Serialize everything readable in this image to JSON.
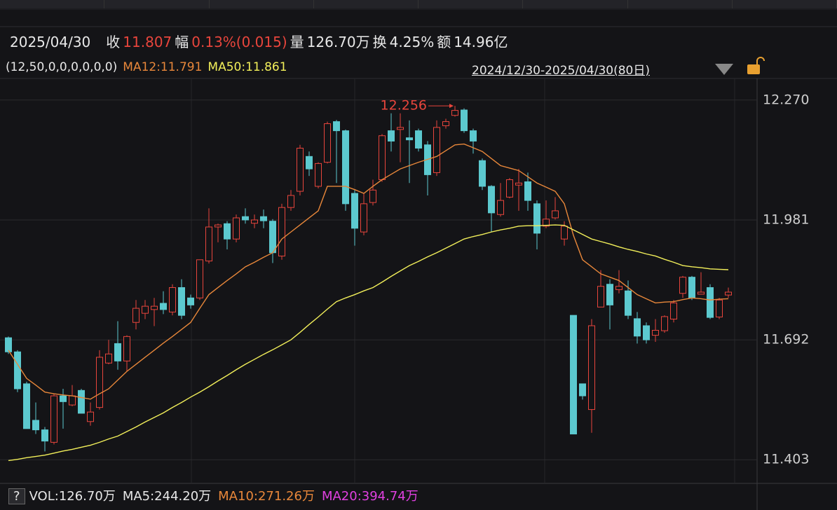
{
  "header": {
    "date": "2025/04/30",
    "stats": [
      {
        "label": "收",
        "value": "11.807",
        "color": "#e8453c"
      },
      {
        "label": "幅",
        "value": "0.13%(0.015)",
        "color": "#e8453c"
      },
      {
        "label": "量",
        "value": "126.70万",
        "color": "#e8e8e8"
      },
      {
        "label": "换",
        "value": "4.25%",
        "color": "#e8e8e8"
      },
      {
        "label": "额",
        "value": "14.96亿",
        "color": "#e8e8e8"
      }
    ]
  },
  "chart_data": {
    "type": "candlestick",
    "legend": [
      {
        "text": "(12,50,0,0,0,0,0,0)",
        "color": "#e8e8e8"
      },
      {
        "text": "MA12:11.791",
        "color": "#e8873a"
      },
      {
        "text": "MA50:11.861",
        "color": "#f2ef5a"
      }
    ],
    "range_label": "2024/12/30-2025/04/30(80日)",
    "up_color": "#e8453c",
    "down_color": "#5cc9cf",
    "ohlc": {
      "open": [
        11.697,
        11.663,
        11.586,
        11.498,
        11.475,
        11.445,
        11.557,
        11.535,
        11.57,
        11.495,
        11.529,
        11.636,
        11.683,
        11.641,
        11.734,
        11.756,
        11.765,
        11.78,
        11.759,
        11.818,
        11.793,
        11.793,
        11.882,
        11.964,
        11.972,
        11.935,
        11.989,
        11.973,
        11.989,
        11.978,
        11.894,
        12.011,
        12.05,
        12.134,
        12.062,
        12.12,
        12.218,
        12.196,
        12.045,
        11.952,
        12.023,
        12.078,
        12.196,
        12.199,
        12.179,
        12.196,
        12.162,
        12.095,
        12.208,
        12.233,
        12.246,
        12.196,
        12.124,
        12.062,
        11.994,
        12.036,
        12.065,
        12.073,
        12.02,
        11.966,
        11.986,
        11.935,
        11.751,
        11.586,
        11.524,
        11.771,
        11.826,
        11.813,
        11.81,
        11.743,
        11.726,
        11.703,
        11.714,
        11.742,
        11.804,
        11.843,
        11.802,
        11.818,
        11.747,
        11.8
      ],
      "high": [
        11.7,
        11.667,
        11.591,
        11.541,
        11.482,
        11.562,
        11.574,
        11.583,
        11.574,
        11.541,
        11.667,
        11.692,
        11.737,
        11.703,
        11.788,
        11.788,
        11.793,
        11.809,
        11.826,
        11.838,
        11.801,
        11.885,
        12.009,
        11.972,
        11.978,
        11.994,
        12.009,
        11.994,
        12.006,
        11.983,
        12.02,
        12.053,
        12.162,
        12.146,
        12.12,
        12.218,
        12.222,
        12.199,
        12.053,
        12.045,
        12.078,
        12.188,
        12.238,
        12.238,
        12.221,
        12.201,
        12.171,
        12.221,
        12.225,
        12.256,
        12.25,
        12.201,
        12.129,
        12.065,
        12.07,
        12.082,
        12.104,
        12.095,
        12.028,
        12.028,
        12.036,
        11.978,
        11.751,
        11.586,
        11.742,
        11.86,
        11.838,
        11.86,
        11.835,
        11.759,
        11.734,
        11.742,
        11.751,
        11.788,
        11.846,
        11.846,
        11.855,
        11.826,
        11.793,
        11.818
      ],
      "low": [
        11.658,
        11.566,
        11.478,
        11.465,
        11.423,
        11.44,
        11.478,
        11.532,
        11.515,
        11.485,
        11.524,
        11.633,
        11.62,
        11.616,
        11.717,
        11.742,
        11.725,
        11.754,
        11.751,
        11.742,
        11.767,
        11.788,
        11.876,
        11.927,
        11.91,
        11.927,
        11.972,
        11.961,
        11.961,
        11.877,
        11.885,
        12.003,
        12.04,
        12.087,
        12.057,
        12.117,
        12.07,
        12.003,
        11.919,
        11.944,
        12.016,
        12.073,
        12.146,
        12.12,
        12.07,
        12.146,
        12.04,
        12.087,
        12.201,
        12.23,
        12.191,
        12.141,
        12.053,
        11.953,
        11.989,
        12.033,
        12.003,
        12.003,
        11.91,
        11.961,
        11.982,
        11.919,
        11.465,
        11.548,
        11.468,
        11.771,
        11.717,
        11.804,
        11.742,
        11.683,
        11.683,
        11.687,
        11.709,
        11.734,
        11.793,
        11.788,
        11.801,
        11.742,
        11.742,
        11.793
      ],
      "close": [
        11.663,
        11.574,
        11.478,
        11.475,
        11.448,
        11.557,
        11.543,
        11.557,
        11.515,
        11.518,
        11.65,
        11.658,
        11.641,
        11.7,
        11.768,
        11.773,
        11.773,
        11.765,
        11.818,
        11.751,
        11.776,
        11.885,
        11.964,
        11.969,
        11.935,
        11.986,
        11.981,
        11.981,
        11.979,
        11.902,
        12.011,
        12.04,
        12.154,
        12.104,
        12.117,
        12.213,
        12.196,
        12.02,
        11.961,
        12.02,
        12.053,
        12.184,
        12.171,
        12.204,
        12.174,
        12.154,
        12.09,
        12.204,
        12.218,
        12.245,
        12.196,
        12.171,
        12.062,
        11.998,
        12.028,
        12.078,
        12.07,
        12.028,
        11.949,
        11.983,
        12.003,
        11.966,
        11.465,
        11.557,
        11.726,
        11.821,
        11.776,
        11.821,
        11.751,
        11.701,
        11.692,
        11.715,
        11.748,
        11.781,
        11.843,
        11.793,
        11.807,
        11.746,
        11.788,
        11.807
      ]
    },
    "lines": [
      {
        "color": "#e8873a",
        "values": [
          11.667,
          11.633,
          11.599,
          11.583,
          11.566,
          11.562,
          11.559,
          11.557,
          11.553,
          11.549,
          11.562,
          11.574,
          11.595,
          11.616,
          11.633,
          11.65,
          11.667,
          11.684,
          11.7,
          11.717,
          11.734,
          11.768,
          11.801,
          11.818,
          11.835,
          11.851,
          11.868,
          11.879,
          11.891,
          11.902,
          11.935,
          11.952,
          11.969,
          11.986,
          12.003,
          12.062,
          12.062,
          12.062,
          12.054,
          12.045,
          12.062,
          12.078,
          12.091,
          12.104,
          12.112,
          12.12,
          12.127,
          12.134,
          12.148,
          12.162,
          12.164,
          12.155,
          12.146,
          12.129,
          12.112,
          12.106,
          12.1,
          12.085,
          12.07,
          12.06,
          12.05,
          12.02,
          11.944,
          11.885,
          11.868,
          11.851,
          11.843,
          11.835,
          11.818,
          11.801,
          11.791,
          11.781,
          11.783,
          11.784,
          11.789,
          11.793,
          11.791,
          11.788,
          11.79,
          11.791
        ]
      },
      {
        "color": "#f2ef5a",
        "values": [
          11.401,
          11.404,
          11.408,
          11.411,
          11.414,
          11.419,
          11.424,
          11.428,
          11.433,
          11.438,
          11.445,
          11.453,
          11.46,
          11.471,
          11.482,
          11.494,
          11.505,
          11.516,
          11.529,
          11.541,
          11.554,
          11.566,
          11.579,
          11.593,
          11.606,
          11.62,
          11.633,
          11.645,
          11.657,
          11.668,
          11.68,
          11.692,
          11.71,
          11.729,
          11.747,
          11.766,
          11.784,
          11.793,
          11.801,
          11.81,
          11.818,
          11.831,
          11.845,
          11.858,
          11.871,
          11.881,
          11.892,
          11.902,
          11.913,
          11.924,
          11.935,
          11.941,
          11.946,
          11.952,
          11.957,
          11.961,
          11.966,
          11.967,
          11.967,
          11.968,
          11.969,
          11.968,
          11.957,
          11.946,
          11.935,
          11.929,
          11.923,
          11.916,
          11.91,
          11.905,
          11.899,
          11.894,
          11.886,
          11.879,
          11.871,
          11.868,
          11.866,
          11.863,
          11.862,
          11.861
        ]
      }
    ],
    "ylim": [
      11.346,
      12.322
    ],
    "yticks": [
      {
        "value": 12.27,
        "label": "12.270"
      },
      11.981,
      11.692,
      11.403
    ],
    "grid": true,
    "max_label": 12.256
  },
  "volume_legend": [
    {
      "text": "?",
      "color": "#e8e8e8"
    },
    {
      "text": "VOL:126.70万",
      "color": "#e8e8e8"
    },
    {
      "text": "MA5:244.20万",
      "color": "#e8e8e8"
    },
    {
      "text": "MA10:271.26万",
      "color": "#e8873a"
    },
    {
      "text": "MA20:394.74万",
      "color": "#e040e0"
    }
  ]
}
